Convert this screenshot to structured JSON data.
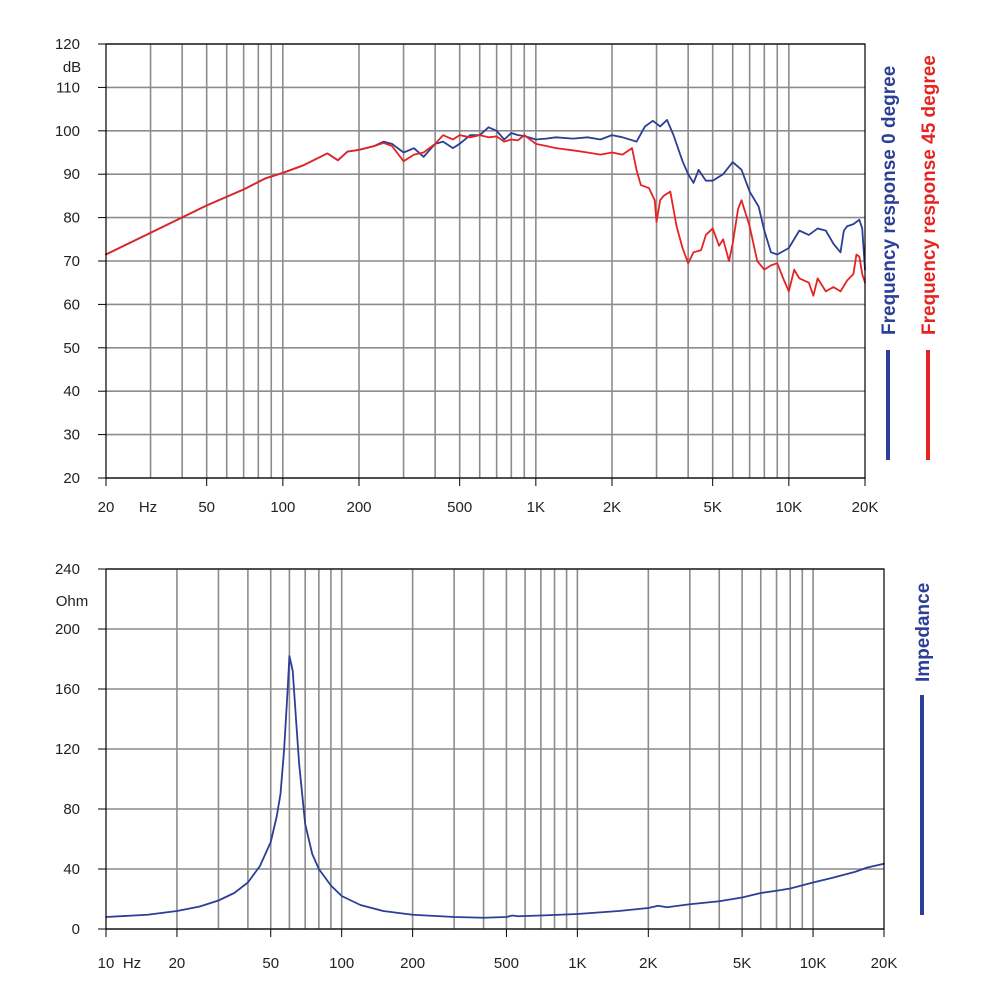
{
  "chart_data": [
    {
      "type": "line",
      "x_scale": "log",
      "xlim": [
        20,
        20000
      ],
      "ylim": [
        20,
        120
      ],
      "grid": true,
      "legend_position": "right, vertical",
      "y_unit_label": "dB",
      "x_unit_label": "Hz",
      "x_ticks": [
        {
          "v": 20,
          "label": "20"
        },
        {
          "v": 50,
          "label": "50"
        },
        {
          "v": 100,
          "label": "100"
        },
        {
          "v": 200,
          "label": "200"
        },
        {
          "v": 500,
          "label": "500"
        },
        {
          "v": 1000,
          "label": "1K"
        },
        {
          "v": 2000,
          "label": "2K"
        },
        {
          "v": 5000,
          "label": "5K"
        },
        {
          "v": 10000,
          "label": "10K"
        },
        {
          "v": 20000,
          "label": "20K"
        }
      ],
      "y_ticks": [
        {
          "v": 20,
          "label": "20"
        },
        {
          "v": 30,
          "label": "30"
        },
        {
          "v": 40,
          "label": "40"
        },
        {
          "v": 50,
          "label": "50"
        },
        {
          "v": 60,
          "label": "60"
        },
        {
          "v": 70,
          "label": "70"
        },
        {
          "v": 80,
          "label": "80"
        },
        {
          "v": 90,
          "label": "90"
        },
        {
          "v": 100,
          "label": "100"
        },
        {
          "v": 110,
          "label": "110"
        },
        {
          "v": 120,
          "label": "120"
        }
      ],
      "series": [
        {
          "name": "Frequency response 0 degree",
          "color": "#2b3f97",
          "points": [
            [
              20,
              71.5
            ],
            [
              30,
              76.5
            ],
            [
              50,
              82.8
            ],
            [
              70,
              86.5
            ],
            [
              85,
              89
            ],
            [
              100,
              90.3
            ],
            [
              120,
              92
            ],
            [
              150,
              94.8
            ],
            [
              165,
              93.2
            ],
            [
              180,
              95.2
            ],
            [
              200,
              95.6
            ],
            [
              230,
              96.5
            ],
            [
              250,
              97.5
            ],
            [
              270,
              97
            ],
            [
              300,
              95
            ],
            [
              330,
              96
            ],
            [
              360,
              94
            ],
            [
              400,
              97
            ],
            [
              430,
              97.5
            ],
            [
              470,
              96
            ],
            [
              500,
              97
            ],
            [
              550,
              99
            ],
            [
              600,
              99
            ],
            [
              650,
              100.8
            ],
            [
              700,
              100
            ],
            [
              750,
              98
            ],
            [
              800,
              99.5
            ],
            [
              850,
              99
            ],
            [
              900,
              98.8
            ],
            [
              1000,
              98
            ],
            [
              1100,
              98.2
            ],
            [
              1200,
              98.5
            ],
            [
              1400,
              98.2
            ],
            [
              1600,
              98.5
            ],
            [
              1800,
              98
            ],
            [
              2000,
              99
            ],
            [
              2200,
              98.5
            ],
            [
              2500,
              97.5
            ],
            [
              2700,
              101
            ],
            [
              2900,
              102.3
            ],
            [
              3100,
              101
            ],
            [
              3300,
              102.5
            ],
            [
              3500,
              99
            ],
            [
              3800,
              93
            ],
            [
              4000,
              90
            ],
            [
              4200,
              88
            ],
            [
              4400,
              91
            ],
            [
              4700,
              88.5
            ],
            [
              5000,
              88.5
            ],
            [
              5500,
              90
            ],
            [
              6000,
              92.8
            ],
            [
              6500,
              91
            ],
            [
              7000,
              86
            ],
            [
              7600,
              82.5
            ],
            [
              8000,
              77
            ],
            [
              8500,
              72
            ],
            [
              9000,
              71.5
            ],
            [
              10000,
              73
            ],
            [
              11000,
              77
            ],
            [
              12000,
              76
            ],
            [
              13000,
              77.5
            ],
            [
              14000,
              77
            ],
            [
              15000,
              74
            ],
            [
              16000,
              72
            ],
            [
              16500,
              77
            ],
            [
              17000,
              78
            ],
            [
              18000,
              78.5
            ],
            [
              19000,
              79.5
            ],
            [
              19500,
              77.5
            ],
            [
              20000,
              68
            ]
          ]
        },
        {
          "name": "Frequency response 45 degree",
          "color": "#e52421",
          "points": [
            [
              20,
              71.5
            ],
            [
              30,
              76.5
            ],
            [
              50,
              82.8
            ],
            [
              70,
              86.5
            ],
            [
              85,
              89
            ],
            [
              100,
              90.3
            ],
            [
              120,
              92
            ],
            [
              150,
              94.8
            ],
            [
              165,
              93.2
            ],
            [
              180,
              95.2
            ],
            [
              200,
              95.6
            ],
            [
              230,
              96.5
            ],
            [
              250,
              97.2
            ],
            [
              270,
              96.5
            ],
            [
              300,
              93
            ],
            [
              330,
              94.5
            ],
            [
              360,
              95
            ],
            [
              400,
              97
            ],
            [
              430,
              99
            ],
            [
              470,
              98
            ],
            [
              500,
              99
            ],
            [
              550,
              98.5
            ],
            [
              600,
              99
            ],
            [
              650,
              98.5
            ],
            [
              700,
              98.7
            ],
            [
              750,
              97.5
            ],
            [
              800,
              98
            ],
            [
              850,
              97.8
            ],
            [
              900,
              99
            ],
            [
              1000,
              97
            ],
            [
              1100,
              96.5
            ],
            [
              1200,
              96
            ],
            [
              1400,
              95.5
            ],
            [
              1600,
              95
            ],
            [
              1800,
              94.5
            ],
            [
              2000,
              95
            ],
            [
              2200,
              94.5
            ],
            [
              2400,
              96
            ],
            [
              2500,
              91
            ],
            [
              2600,
              87.5
            ],
            [
              2800,
              86.8
            ],
            [
              2950,
              84
            ],
            [
              3000,
              79
            ],
            [
              3100,
              84
            ],
            [
              3200,
              85
            ],
            [
              3400,
              86
            ],
            [
              3600,
              78
            ],
            [
              3800,
              73
            ],
            [
              4000,
              69.5
            ],
            [
              4200,
              72
            ],
            [
              4500,
              72.5
            ],
            [
              4700,
              76
            ],
            [
              5000,
              77.5
            ],
            [
              5300,
              73.5
            ],
            [
              5500,
              75
            ],
            [
              5800,
              70
            ],
            [
              6000,
              74
            ],
            [
              6300,
              82
            ],
            [
              6500,
              84
            ],
            [
              7000,
              78
            ],
            [
              7500,
              70
            ],
            [
              8000,
              68
            ],
            [
              8500,
              69
            ],
            [
              9000,
              69.5
            ],
            [
              9500,
              66
            ],
            [
              10000,
              63
            ],
            [
              10500,
              68
            ],
            [
              11000,
              66
            ],
            [
              12000,
              65
            ],
            [
              12500,
              62
            ],
            [
              13000,
              66
            ],
            [
              14000,
              63
            ],
            [
              15000,
              64
            ],
            [
              16000,
              63
            ],
            [
              17000,
              65.5
            ],
            [
              18000,
              67
            ],
            [
              18500,
              71.5
            ],
            [
              19000,
              71
            ],
            [
              19500,
              67
            ],
            [
              20000,
              65
            ]
          ]
        }
      ]
    },
    {
      "type": "line",
      "x_scale": "log",
      "xlim": [
        10,
        20000
      ],
      "ylim": [
        0,
        240
      ],
      "grid": true,
      "legend_position": "right, vertical",
      "y_unit_label": "Ohm",
      "x_unit_label": "Hz",
      "x_ticks": [
        {
          "v": 10,
          "label": "10"
        },
        {
          "v": 20,
          "label": "20"
        },
        {
          "v": 50,
          "label": "50"
        },
        {
          "v": 100,
          "label": "100"
        },
        {
          "v": 200,
          "label": "200"
        },
        {
          "v": 500,
          "label": "500"
        },
        {
          "v": 1000,
          "label": "1K"
        },
        {
          "v": 2000,
          "label": "2K"
        },
        {
          "v": 5000,
          "label": "5K"
        },
        {
          "v": 10000,
          "label": "10K"
        },
        {
          "v": 20000,
          "label": "20K"
        }
      ],
      "y_ticks": [
        {
          "v": 0,
          "label": "0"
        },
        {
          "v": 40,
          "label": "40"
        },
        {
          "v": 80,
          "label": "80"
        },
        {
          "v": 120,
          "label": "120"
        },
        {
          "v": 160,
          "label": "160"
        },
        {
          "v": 200,
          "label": "200"
        },
        {
          "v": 240,
          "label": "240"
        }
      ],
      "series": [
        {
          "name": "Impedance",
          "color": "#2b3f97",
          "points": [
            [
              10,
              8
            ],
            [
              15,
              9.5
            ],
            [
              20,
              12
            ],
            [
              25,
              15
            ],
            [
              30,
              19
            ],
            [
              35,
              24
            ],
            [
              40,
              31
            ],
            [
              45,
              42
            ],
            [
              50,
              58
            ],
            [
              53,
              75
            ],
            [
              55,
              90
            ],
            [
              57,
              120
            ],
            [
              59,
              160
            ],
            [
              60,
              182
            ],
            [
              62,
              172
            ],
            [
              64,
              140
            ],
            [
              66,
              110
            ],
            [
              70,
              70
            ],
            [
              75,
              50
            ],
            [
              80,
              40
            ],
            [
              90,
              29
            ],
            [
              100,
              22
            ],
            [
              120,
              16
            ],
            [
              150,
              12
            ],
            [
              200,
              9.5
            ],
            [
              300,
              8
            ],
            [
              400,
              7.5
            ],
            [
              500,
              8
            ],
            [
              530,
              9
            ],
            [
              560,
              8.5
            ],
            [
              700,
              9
            ],
            [
              1000,
              10
            ],
            [
              1500,
              12
            ],
            [
              2000,
              14
            ],
            [
              2200,
              15.5
            ],
            [
              2400,
              14.5
            ],
            [
              3000,
              16.5
            ],
            [
              4000,
              18.5
            ],
            [
              5000,
              21
            ],
            [
              6000,
              24
            ],
            [
              7000,
              25.5
            ],
            [
              8000,
              27
            ],
            [
              10000,
              31
            ],
            [
              12000,
              34
            ],
            [
              15000,
              38
            ],
            [
              17000,
              41
            ],
            [
              20000,
              43.5
            ]
          ]
        }
      ]
    }
  ]
}
